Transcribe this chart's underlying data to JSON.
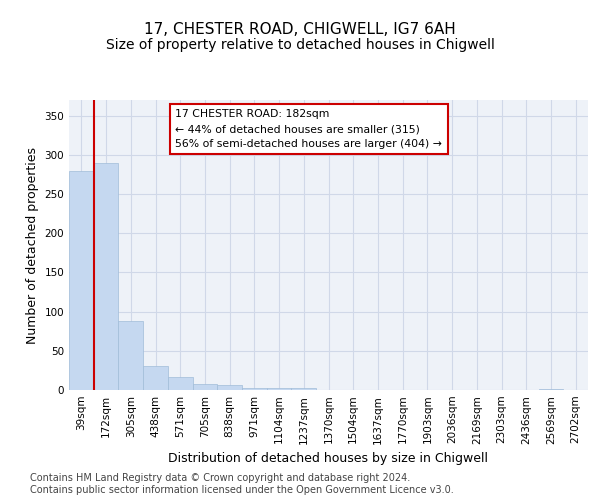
{
  "title": "17, CHESTER ROAD, CHIGWELL, IG7 6AH",
  "subtitle": "Size of property relative to detached houses in Chigwell",
  "xlabel": "Distribution of detached houses by size in Chigwell",
  "ylabel": "Number of detached properties",
  "bin_labels": [
    "39sqm",
    "172sqm",
    "305sqm",
    "438sqm",
    "571sqm",
    "705sqm",
    "838sqm",
    "971sqm",
    "1104sqm",
    "1237sqm",
    "1370sqm",
    "1504sqm",
    "1637sqm",
    "1770sqm",
    "1903sqm",
    "2036sqm",
    "2169sqm",
    "2303sqm",
    "2436sqm",
    "2569sqm",
    "2702sqm"
  ],
  "bar_heights": [
    280,
    290,
    88,
    30,
    17,
    8,
    6,
    2,
    3,
    3,
    0,
    0,
    0,
    0,
    0,
    0,
    0,
    0,
    0,
    1,
    0
  ],
  "bar_color": "#c5d8f0",
  "bar_edge_color": "#a0bcd8",
  "subject_line_color": "#cc0000",
  "annotation_text": "17 CHESTER ROAD: 182sqm\n← 44% of detached houses are smaller (315)\n56% of semi-detached houses are larger (404) →",
  "annotation_box_color": "#cc0000",
  "ylim": [
    0,
    370
  ],
  "yticks": [
    0,
    50,
    100,
    150,
    200,
    250,
    300,
    350
  ],
  "grid_color": "#d0d8e8",
  "background_color": "#eef2f8",
  "footer_text": "Contains HM Land Registry data © Crown copyright and database right 2024.\nContains public sector information licensed under the Open Government Licence v3.0.",
  "title_fontsize": 11,
  "subtitle_fontsize": 10,
  "xlabel_fontsize": 9,
  "ylabel_fontsize": 9,
  "tick_fontsize": 7.5,
  "footer_fontsize": 7
}
